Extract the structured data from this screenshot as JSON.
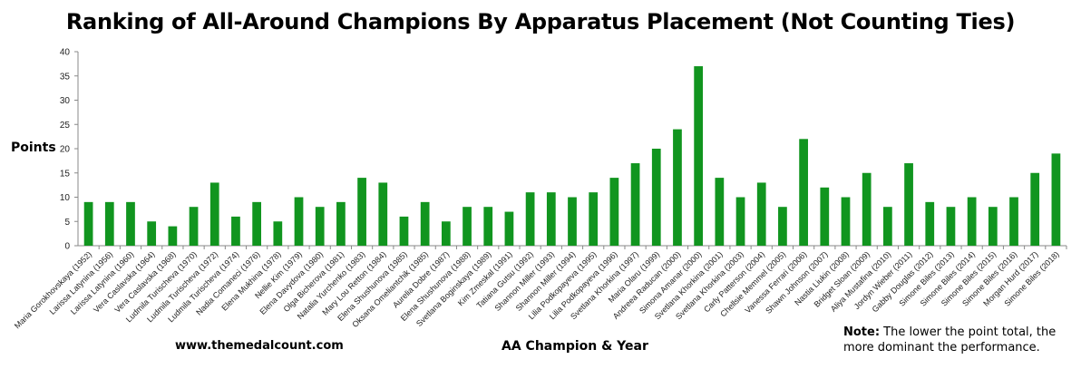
{
  "chart_data": {
    "type": "bar",
    "title": "Ranking of All-Around Champions By Apparatus Placement (Not Counting Ties)",
    "xlabel": "AA Champion & Year",
    "ylabel": "Points",
    "ylim": [
      0,
      40
    ],
    "yticks": [
      0,
      5,
      10,
      15,
      20,
      25,
      30,
      35,
      40
    ],
    "grid": false,
    "bar_color": "#11951f",
    "categories": [
      "Maria Gorokhovskaya (1952)",
      "Larissa Latynina (1956)",
      "Larissa Latynina (1960)",
      "Vera Caslavska (1964)",
      "Vera Caslavska (1968)",
      "Ludmila Turischeva (1970)",
      "Ludmila Turischeva (1972)",
      "Ludmila Turischeva (1974)",
      "Nadia Comaneci (1976)",
      "Elena Mukhina (1978)",
      "Nellie Kim (1979)",
      "Elena Davydova (1980)",
      "Olga Bicherova (1981)",
      "Natalia Yurchenko (1983)",
      "Mary Lou Retton (1984)",
      "Elena Shushunova (1985)",
      "Oksana Omeliantchik (1985)",
      "Aurelia Dobre (1987)",
      "Elena Shushunova (1988)",
      "Svetlana Boginskaya (1989)",
      "Kim Zmeskal (1991)",
      "Tatiana Gutsu (1992)",
      "Shannon Miller (1993)",
      "Shannon Miller (1994)",
      "Lilia Podkopayeva (1995)",
      "Lilia Podkopayeva (1996)",
      "Svetlana Khorkina (1997)",
      "Maria Olaru (1999)",
      "Andreea Raducan (2000)",
      "Simona Amanar (2000)",
      "Svetlana Khorkina (2001)",
      "Svetlana Khorkina (2003)",
      "Carly Patterson (2004)",
      "Chellsie Memmel (2005)",
      "Vanessa Ferrari (2006)",
      "Shawn Johnson (2007)",
      "Nastia Liukin (2008)",
      "Bridget Sloan (2009)",
      "Aliya Mustafina (2010)",
      "Jordyn Wieber (2011)",
      "Gabby Douglas (2012)",
      "Simone Biles (2013)",
      "Simone Biles (2014)",
      "Simone Biles (2015)",
      "Simone Biles (2016)",
      "Morgan Hurd (2017)",
      "Simone Biles (2018)"
    ],
    "values": [
      9,
      9,
      9,
      5,
      4,
      8,
      13,
      6,
      9,
      5,
      10,
      8,
      9,
      14,
      13,
      6,
      9,
      5,
      8,
      8,
      7,
      11,
      11,
      10,
      11,
      14,
      17,
      20,
      24,
      37,
      14,
      10,
      13,
      8,
      22,
      12,
      10,
      15,
      8,
      17,
      9,
      8,
      10,
      8,
      10,
      15,
      19
    ]
  },
  "footer": {
    "website": "www.themedalcount.com",
    "note_label": "Note:",
    "note_text": " The lower the point total, the more dominant the performance."
  }
}
